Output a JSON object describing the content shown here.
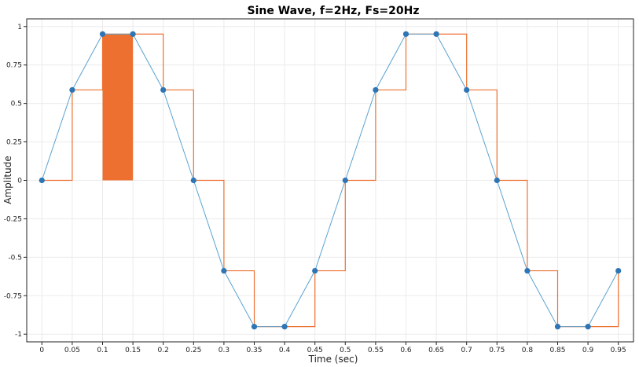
{
  "chart_data": {
    "type": "line",
    "title": "Sine Wave, f=2Hz, Fs=20Hz",
    "xlabel": "Time (sec)",
    "ylabel": "Amplitude",
    "xlim": [
      -0.025,
      0.975
    ],
    "ylim": [
      -1.05,
      1.05
    ],
    "xticks": [
      "0",
      "0.05",
      "0.1",
      "0.15",
      "0.2",
      "0.25",
      "0.3",
      "0.35",
      "0.4",
      "0.45",
      "0.5",
      "0.55",
      "0.6",
      "0.65",
      "0.7",
      "0.75",
      "0.8",
      "0.85",
      "0.9",
      "0.95"
    ],
    "yticks": [
      "1",
      "0.75",
      "0.5",
      "0.25",
      "0",
      "-0.25",
      "-0.5",
      "-0.75",
      "-1"
    ],
    "grid": true,
    "colors": {
      "samples": "#2e75b6",
      "line": "#5ba3d0",
      "hold": "#ed7031",
      "frame": "#222222"
    },
    "series": [
      {
        "kind": "sampled-line",
        "x": [
          0,
          0.05,
          0.1,
          0.15,
          0.2,
          0.25,
          0.3,
          0.35,
          0.4,
          0.45,
          0.5,
          0.55,
          0.6,
          0.65,
          0.7,
          0.75,
          0.8,
          0.85,
          0.9,
          0.95
        ],
        "y": [
          0,
          0.5878,
          0.9511,
          0.9511,
          0.5878,
          0,
          -0.5878,
          -0.9511,
          -0.9511,
          -0.5878,
          0,
          0.5878,
          0.9511,
          0.9511,
          0.5878,
          0,
          -0.5878,
          -0.9511,
          -0.9511,
          -0.5878
        ]
      },
      {
        "kind": "zero-order-hold",
        "x": [
          0,
          0.05,
          0.1,
          0.15,
          0.2,
          0.25,
          0.3,
          0.35,
          0.4,
          0.45,
          0.5,
          0.55,
          0.6,
          0.65,
          0.7,
          0.75,
          0.8,
          0.85,
          0.9,
          0.95
        ],
        "y": [
          0,
          0.5878,
          0.9511,
          0.9511,
          0.5878,
          0,
          -0.5878,
          -0.9511,
          -0.9511,
          -0.5878,
          0,
          0.5878,
          0.9511,
          0.9511,
          0.5878,
          0,
          -0.5878,
          -0.9511,
          -0.9511,
          -0.5878
        ]
      }
    ],
    "highlight": {
      "x0": 0.1,
      "x1": 0.15,
      "y0": 0,
      "y1": 0.9511
    }
  }
}
